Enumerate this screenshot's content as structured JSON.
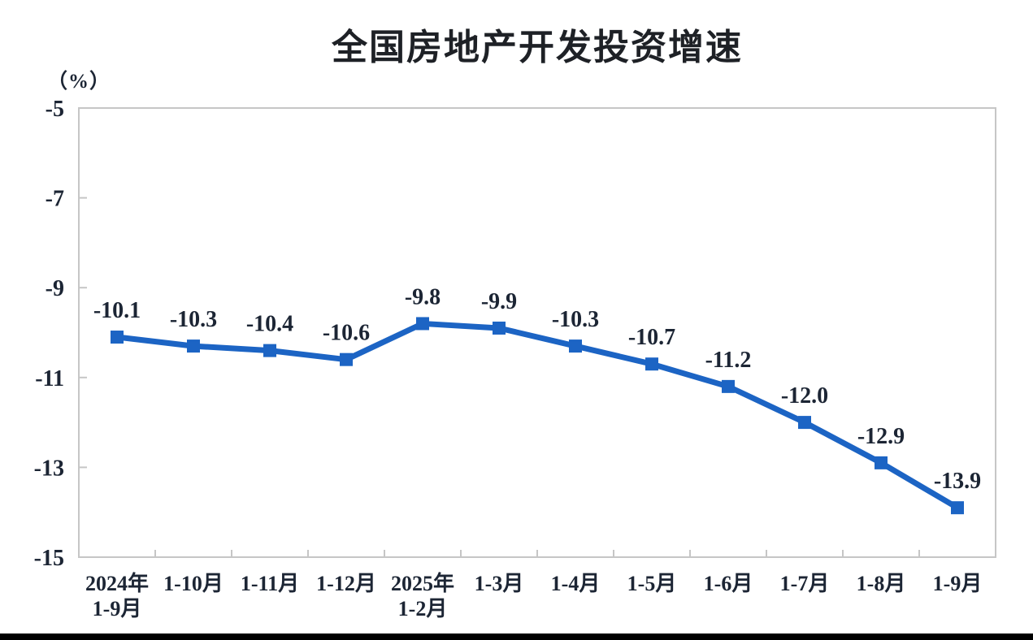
{
  "page": {
    "background_color": "#ffffff",
    "bottom_bar_color": "#000000"
  },
  "chart_data": {
    "type": "line",
    "title": "全国房地产开发投资增速",
    "unit_label": "（%）",
    "categories": [
      [
        "2024年",
        "1-9月"
      ],
      [
        "1-10月"
      ],
      [
        "1-11月"
      ],
      [
        "1-12月"
      ],
      [
        "2025年",
        "1-2月"
      ],
      [
        "1-3月"
      ],
      [
        "1-4月"
      ],
      [
        "1-5月"
      ],
      [
        "1-6月"
      ],
      [
        "1-7月"
      ],
      [
        "1-8月"
      ],
      [
        "1-9月"
      ]
    ],
    "values": [
      -10.1,
      -10.3,
      -10.4,
      -10.6,
      -9.8,
      -9.9,
      -10.3,
      -10.7,
      -11.2,
      -12.0,
      -12.9,
      -13.9
    ],
    "value_labels": [
      "-10.1",
      "-10.3",
      "-10.4",
      "-10.6",
      "-9.8",
      "-9.9",
      "-10.3",
      "-10.7",
      "-11.2",
      "-12.0",
      "-12.9",
      "-13.9"
    ],
    "xlabel": "",
    "ylabel": "",
    "y_ticks": [
      -5,
      -7,
      -9,
      -11,
      -13,
      -15
    ],
    "ylim": [
      -15,
      -5
    ],
    "grid": false,
    "legend": "none",
    "marker": "square",
    "line_color": "#1C64C4",
    "axis_color": "#C6C6C6",
    "text_color": "#1c2534"
  }
}
